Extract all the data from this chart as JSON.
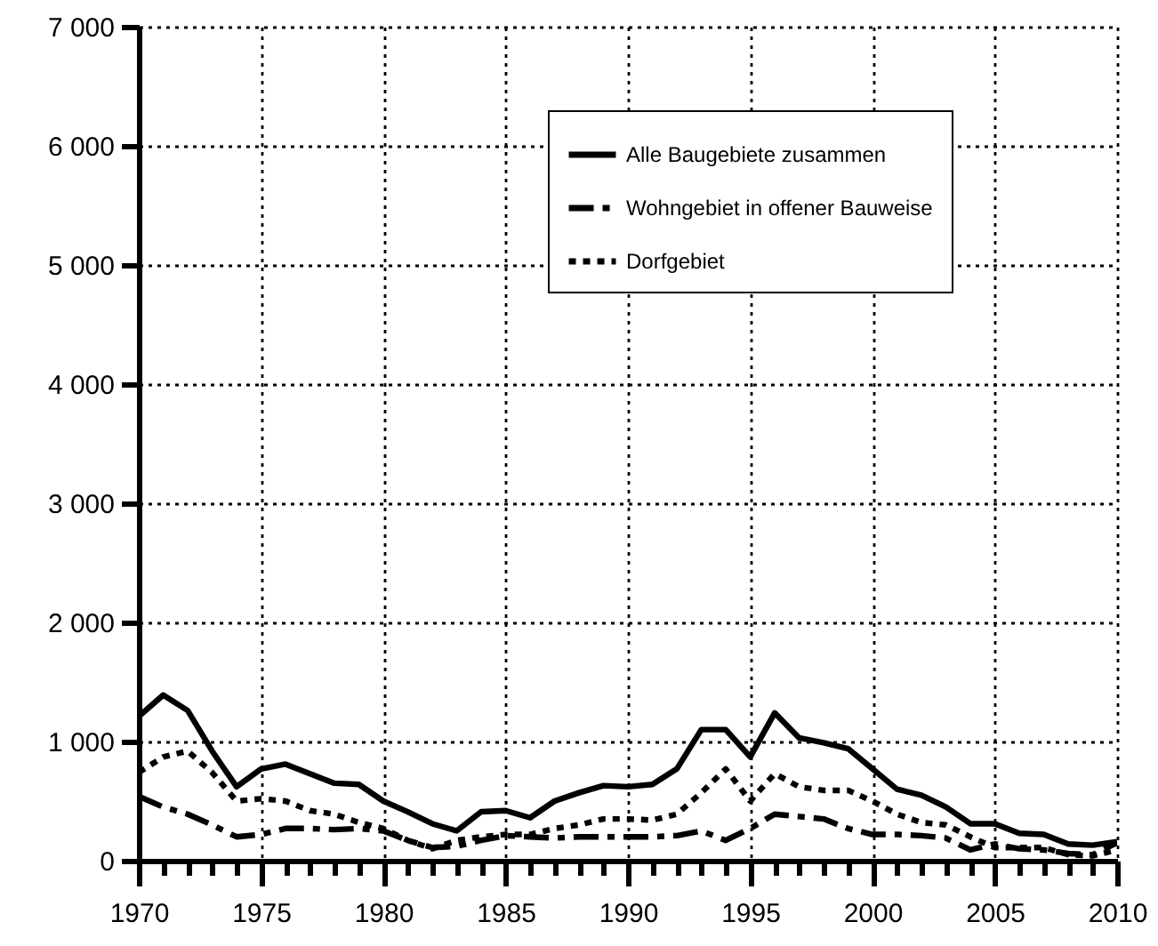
{
  "chart_data": {
    "type": "line",
    "x": [
      1970,
      1971,
      1972,
      1973,
      1974,
      1975,
      1976,
      1977,
      1978,
      1979,
      1980,
      1981,
      1982,
      1983,
      1984,
      1985,
      1986,
      1987,
      1988,
      1989,
      1990,
      1991,
      1992,
      1993,
      1994,
      1995,
      1996,
      1997,
      1998,
      1999,
      2000,
      2001,
      2002,
      2003,
      2004,
      2005,
      2006,
      2007,
      2008,
      2009,
      2010
    ],
    "series": [
      {
        "name": "Alle Baugebiete zusammen",
        "color": "#000000",
        "line_style": "solid",
        "values": [
          1210,
          1390,
          1260,
          920,
          620,
          770,
          810,
          730,
          650,
          640,
          500,
          410,
          310,
          250,
          410,
          420,
          360,
          500,
          570,
          630,
          620,
          640,
          770,
          1100,
          1100,
          870,
          1240,
          1030,
          990,
          940,
          770,
          600,
          550,
          450,
          310,
          310,
          230,
          220,
          140,
          130,
          160
        ]
      },
      {
        "name": "Wohngebiet in offener Bauweise",
        "color": "#000000",
        "line_style": "dashed",
        "values": [
          540,
          450,
          390,
          300,
          200,
          220,
          270,
          270,
          260,
          270,
          250,
          170,
          110,
          120,
          170,
          210,
          200,
          190,
          200,
          200,
          200,
          200,
          210,
          250,
          170,
          270,
          390,
          370,
          350,
          270,
          220,
          220,
          210,
          190,
          90,
          140,
          100,
          90,
          60,
          50,
          150
        ]
      },
      {
        "name": "Dorfgebiet",
        "color": "#000000",
        "line_style": "dotted",
        "values": [
          740,
          870,
          920,
          740,
          500,
          520,
          500,
          420,
          390,
          320,
          270,
          170,
          100,
          170,
          200,
          220,
          220,
          270,
          300,
          350,
          350,
          340,
          390,
          570,
          770,
          500,
          730,
          620,
          590,
          590,
          500,
          390,
          320,
          300,
          200,
          110,
          110,
          110,
          50,
          40,
          90
        ]
      }
    ],
    "xlim": [
      1970,
      2010
    ],
    "xticks": [
      1970,
      {
        "value": 1971,
        "label": null
      },
      {
        "value": 1972,
        "label": null
      },
      {
        "value": 1973,
        "label": null
      },
      {
        "value": 1974,
        "label": null
      },
      1975,
      {
        "value": 1976,
        "label": null
      },
      {
        "value": 1977,
        "label": null
      },
      {
        "value": 1978,
        "label": null
      },
      {
        "value": 1979,
        "label": null
      },
      1980,
      {
        "value": 1981,
        "label": null
      },
      {
        "value": 1982,
        "label": null
      },
      {
        "value": 1983,
        "label": null
      },
      {
        "value": 1984,
        "label": null
      },
      1985,
      {
        "value": 1986,
        "label": null
      },
      {
        "value": 1987,
        "label": null
      },
      {
        "value": 1988,
        "label": null
      },
      {
        "value": 1989,
        "label": null
      },
      1990,
      {
        "value": 1991,
        "label": null
      },
      {
        "value": 1992,
        "label": null
      },
      {
        "value": 1993,
        "label": null
      },
      {
        "value": 1994,
        "label": null
      },
      1995,
      {
        "value": 1996,
        "label": null
      },
      {
        "value": 1997,
        "label": null
      },
      {
        "value": 1998,
        "label": null
      },
      {
        "value": 1999,
        "label": null
      },
      2000,
      {
        "value": 2001,
        "label": null
      },
      {
        "value": 2002,
        "label": null
      },
      {
        "value": 2003,
        "label": null
      },
      {
        "value": 2004,
        "label": null
      },
      2005,
      {
        "value": 2006,
        "label": null
      },
      {
        "value": 2007,
        "label": null
      },
      {
        "value": 2008,
        "label": null
      },
      {
        "value": 2009,
        "label": null
      },
      2010
    ],
    "ylim": [
      0,
      7000
    ],
    "yticks": [
      0,
      {
        "value": 1000,
        "label": "1 000"
      },
      {
        "value": 2000,
        "label": "2 000"
      },
      {
        "value": 3000,
        "label": "3 000"
      },
      {
        "value": 4000,
        "label": "4 000"
      },
      {
        "value": 5000,
        "label": "5 000"
      },
      {
        "value": 6000,
        "label": "6 000"
      },
      {
        "value": 7000,
        "label": "7 000"
      }
    ],
    "grid": true,
    "legend": "top right"
  }
}
